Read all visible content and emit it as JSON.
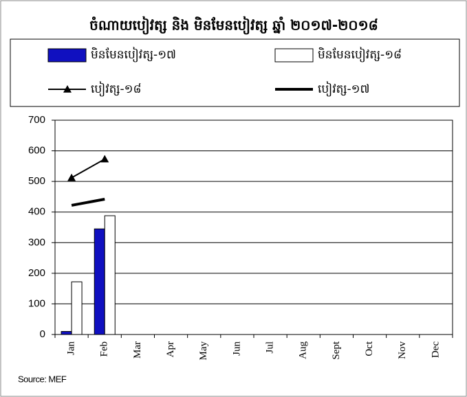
{
  "chart_data": {
    "type": "bar",
    "title": "ចំណាយបៀវត្ស និង មិនមែនបៀវត្ស ឆ្នាំ ២០១៧-២០១៨",
    "categories": [
      "Jan",
      "Feb",
      "Mar",
      "Apr",
      "May",
      "Jun",
      "Jul",
      "Aug",
      "Sept",
      "Oct",
      "Nov",
      "Dec"
    ],
    "series": [
      {
        "name": "មិនមែនបៀវត្ស-១៧",
        "type": "bar",
        "color": "#1010c0",
        "values": [
          10,
          345,
          null,
          null,
          null,
          null,
          null,
          null,
          null,
          null,
          null,
          null
        ]
      },
      {
        "name": "មិនមែនបៀវត្ស-១៨",
        "type": "bar",
        "color": "#ffffff",
        "values": [
          172,
          388,
          null,
          null,
          null,
          null,
          null,
          null,
          null,
          null,
          null,
          null
        ]
      },
      {
        "name": "បៀវត្ស-១៨",
        "type": "line",
        "color": "#000000",
        "marker": "triangle",
        "values": [
          512,
          573,
          null,
          null,
          null,
          null,
          null,
          null,
          null,
          null,
          null,
          null
        ]
      },
      {
        "name": "បៀវត្ស-១៧",
        "type": "line",
        "color": "#000000",
        "values": [
          422,
          442,
          null,
          null,
          null,
          null,
          null,
          null,
          null,
          null,
          null,
          null
        ]
      }
    ],
    "ylim": [
      0,
      700
    ],
    "yticks": [
      0,
      100,
      200,
      300,
      400,
      500,
      600,
      700
    ],
    "grid": true,
    "source": "Source: MEF"
  }
}
